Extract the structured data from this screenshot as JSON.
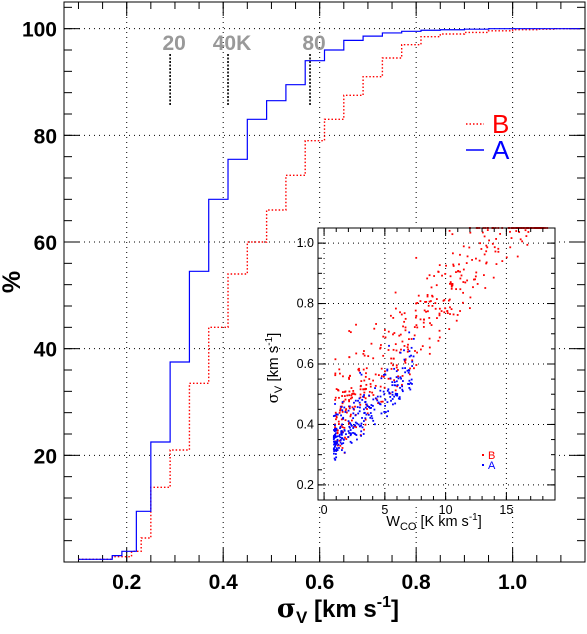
{
  "colors": {
    "A": "#0000ff",
    "B": "#ff0000",
    "temperature_labels": "#999999"
  },
  "chart_data": [
    {
      "type": "line",
      "subtype": "cumulative-step",
      "xlabel": "σ_V [km s^-1]",
      "ylabel": "%",
      "xlim": [
        0.07,
        1.15
      ],
      "ylim": [
        0,
        105
      ],
      "x_ticks": [
        "0.2",
        "0.4",
        "0.6",
        "0.8",
        "1.0"
      ],
      "y_ticks": [
        "20",
        "40",
        "60",
        "80",
        "100"
      ],
      "grid": true,
      "legend": {
        "placement": "top-right",
        "entries": [
          "B",
          "A"
        ]
      },
      "temperature_markers": [
        {
          "label": "20",
          "x": 0.29
        },
        {
          "label": "40K",
          "x": 0.41
        },
        {
          "label": "80",
          "x": 0.58
        }
      ],
      "series": [
        {
          "name": "A",
          "color": "#0000ff",
          "style": "solid",
          "x": [
            0.1,
            0.17,
            0.19,
            0.22,
            0.25,
            0.29,
            0.33,
            0.37,
            0.41,
            0.45,
            0.49,
            0.53,
            0.57,
            0.61,
            0.65,
            0.69,
            0.73,
            0.77,
            0.81,
            0.85,
            0.9,
            0.95,
            1.0,
            1.05,
            1.09,
            1.14
          ],
          "y": [
            0.5,
            1.2,
            2,
            9.5,
            22.5,
            37.5,
            54.5,
            68,
            75.5,
            83,
            86.5,
            89.5,
            94,
            96,
            97.8,
            98.6,
            99.2,
            99.5,
            99.7,
            99.8,
            99.9,
            100,
            100,
            100,
            100,
            100
          ]
        },
        {
          "name": "B",
          "color": "#ff0000",
          "style": "dotted",
          "x": [
            0.1,
            0.17,
            0.21,
            0.23,
            0.25,
            0.29,
            0.33,
            0.37,
            0.41,
            0.45,
            0.49,
            0.53,
            0.57,
            0.61,
            0.65,
            0.69,
            0.73,
            0.77,
            0.81,
            0.85,
            0.9,
            0.95,
            1.0,
            1.05,
            1.09,
            1.14
          ],
          "y": [
            0.5,
            1,
            2,
            4.5,
            14,
            21,
            33.5,
            44,
            54,
            60,
            66,
            72.5,
            79,
            83,
            87.5,
            91,
            94.5,
            97,
            98.5,
            99,
            99.3,
            99.6,
            99.8,
            99.9,
            100,
            100
          ]
        }
      ]
    },
    {
      "type": "scatter",
      "placement": "inset",
      "xlabel": "W_CO [K km s^-1]",
      "ylabel": "σ_V [km s^-1]",
      "xlim": [
        -0.5,
        19
      ],
      "ylim": [
        0.15,
        1.05
      ],
      "x_ticks": [
        "0",
        "5",
        "10",
        "15"
      ],
      "y_ticks": [
        "0.2",
        "0.4",
        "0.6",
        "0.8",
        "1.0"
      ],
      "grid": true,
      "legend": {
        "placement": "bottom-right",
        "entries": [
          "B",
          "A"
        ]
      },
      "series": [
        {
          "name": "B",
          "color": "#ff0000",
          "n_points": 460,
          "x_range": [
            0.9,
            18.5
          ],
          "y_range": [
            0.17,
            1.05
          ]
        },
        {
          "name": "A",
          "color": "#0000ff",
          "n_points": 260,
          "x_range": [
            0.8,
            7.5
          ],
          "y_range": [
            0.17,
            0.75
          ]
        }
      ]
    }
  ]
}
